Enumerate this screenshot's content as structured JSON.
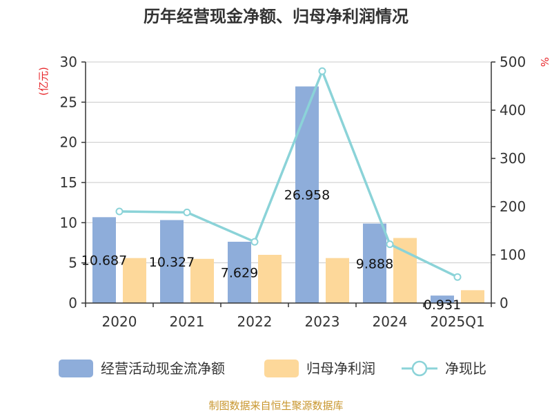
{
  "chart_data": {
    "type": "bar",
    "title": "历年经营现金净额、归母净利润情况",
    "categories": [
      "2020",
      "2021",
      "2022",
      "2023",
      "2024",
      "2025Q1"
    ],
    "series": [
      {
        "name": "经营活动现金流净额",
        "type": "bar",
        "axis": "left",
        "color": "#8eadda",
        "values": [
          10.687,
          10.327,
          7.629,
          26.958,
          9.888,
          0.931
        ],
        "labels": [
          "10.687",
          "10.327",
          "7.629",
          "26.958",
          "9.888",
          "0.931"
        ]
      },
      {
        "name": "归母净利润",
        "type": "bar",
        "axis": "left",
        "color": "#fdd89a",
        "values": [
          5.6,
          5.5,
          6.0,
          5.6,
          8.1,
          1.6
        ]
      },
      {
        "name": "净现比",
        "type": "line",
        "axis": "right",
        "color": "#8bd3d8",
        "values": [
          190,
          188,
          127,
          481,
          122,
          54
        ]
      }
    ],
    "y_left": {
      "unit": "(亿元)",
      "min": 0,
      "max": 30,
      "ticks": [
        "0",
        "5",
        "10",
        "15",
        "20",
        "25",
        "30"
      ]
    },
    "y_right": {
      "unit": "%",
      "min": 0,
      "max": 500,
      "ticks": [
        "0",
        "100",
        "200",
        "300",
        "400",
        "500"
      ]
    },
    "grid": true,
    "legend_position": "bottom"
  },
  "source": "制图数据来自恒生聚源数据库"
}
